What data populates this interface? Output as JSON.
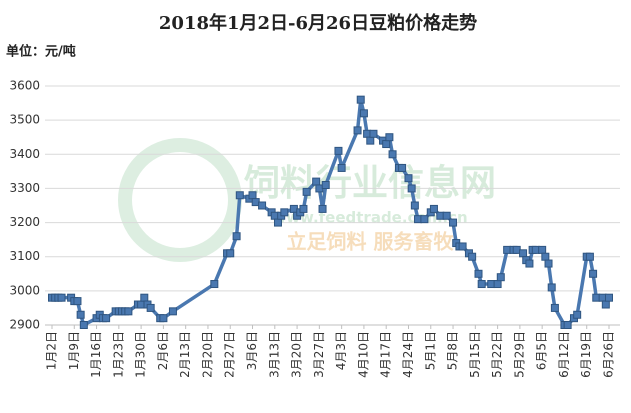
{
  "chart_data": {
    "type": "line",
    "title": "2018年1月2日-6月26日豆粕价格走势",
    "unit_label": "单位：元/吨",
    "watermark": [
      "饲料行业信息网",
      "www.feedtrade.com.cn",
      "立足饲料  服务畜牧"
    ],
    "color": "#4a78b0",
    "grid": true,
    "xlim": [
      0,
      175
    ],
    "xticks": [
      {
        "value": 0,
        "label": "1月2日"
      },
      {
        "value": 7,
        "label": "1月9日"
      },
      {
        "value": 14,
        "label": "1月16日"
      },
      {
        "value": 21,
        "label": "1月23日"
      },
      {
        "value": 28,
        "label": "1月30日"
      },
      {
        "value": 35,
        "label": "2月6日"
      },
      {
        "value": 42,
        "label": "2月13日"
      },
      {
        "value": 49,
        "label": "2月20日"
      },
      {
        "value": 56,
        "label": "2月27日"
      },
      {
        "value": 63,
        "label": "3月6日"
      },
      {
        "value": 70,
        "label": "3月13日"
      },
      {
        "value": 77,
        "label": "3月20日"
      },
      {
        "value": 84,
        "label": "3月27日"
      },
      {
        "value": 91,
        "label": "4月3日"
      },
      {
        "value": 98,
        "label": "4月10日"
      },
      {
        "value": 105,
        "label": "4月17日"
      },
      {
        "value": 112,
        "label": "4月24日"
      },
      {
        "value": 119,
        "label": "5月1日"
      },
      {
        "value": 126,
        "label": "5月8日"
      },
      {
        "value": 133,
        "label": "5月15日"
      },
      {
        "value": 140,
        "label": "5月22日"
      },
      {
        "value": 147,
        "label": "5月29日"
      },
      {
        "value": 154,
        "label": "6月5日"
      },
      {
        "value": 161,
        "label": "6月12日"
      },
      {
        "value": 168,
        "label": "6月19日"
      },
      {
        "value": 175,
        "label": "6月26日"
      }
    ],
    "ylim": [
      2900,
      3600
    ],
    "yticks": [
      2900,
      3000,
      3100,
      3200,
      3300,
      3400,
      3500,
      3600
    ],
    "x": [
      0,
      1,
      2,
      3,
      6,
      7,
      8,
      9,
      10,
      14,
      15,
      16,
      17,
      20,
      21,
      22,
      23,
      24,
      27,
      28,
      29,
      30,
      31,
      34,
      35,
      38,
      51,
      55,
      56,
      58,
      59,
      62,
      63,
      64,
      66,
      69,
      70,
      71,
      72,
      73,
      76,
      77,
      78,
      79,
      80,
      83,
      84,
      85,
      86,
      90,
      91,
      96,
      97,
      98,
      99,
      100,
      101,
      104,
      105,
      106,
      107,
      109,
      110,
      112,
      113,
      114,
      115,
      117,
      119,
      120,
      122,
      124,
      126,
      127,
      128,
      129,
      131,
      132,
      134,
      135,
      138,
      140,
      141,
      143,
      145,
      146,
      148,
      149,
      150,
      151,
      152,
      154,
      155,
      156,
      157,
      158,
      161,
      162,
      164,
      165,
      168,
      169,
      170,
      171,
      173,
      174,
      175
    ],
    "values": [
      2980,
      2980,
      2980,
      2980,
      2980,
      2970,
      2970,
      2930,
      2900,
      2920,
      2930,
      2920,
      2920,
      2940,
      2940,
      2940,
      2940,
      2940,
      2960,
      2960,
      2980,
      2960,
      2950,
      2920,
      2920,
      2940,
      3020,
      3110,
      3110,
      3160,
      3280,
      3270,
      3280,
      3260,
      3250,
      3230,
      3220,
      3200,
      3220,
      3230,
      3240,
      3220,
      3230,
      3240,
      3290,
      3320,
      3300,
      3240,
      3310,
      3410,
      3360,
      3470,
      3560,
      3520,
      3460,
      3440,
      3460,
      3440,
      3430,
      3450,
      3400,
      3360,
      3360,
      3330,
      3300,
      3250,
      3210,
      3210,
      3230,
      3240,
      3220,
      3220,
      3200,
      3140,
      3130,
      3130,
      3110,
      3100,
      3050,
      3020,
      3020,
      3020,
      3040,
      3120,
      3120,
      3120,
      3110,
      3090,
      3080,
      3120,
      3120,
      3120,
      3100,
      3080,
      3010,
      2950,
      2900,
      2900,
      2920,
      2930,
      3100,
      3100,
      3050,
      2980,
      2980,
      2960,
      2980
    ]
  }
}
